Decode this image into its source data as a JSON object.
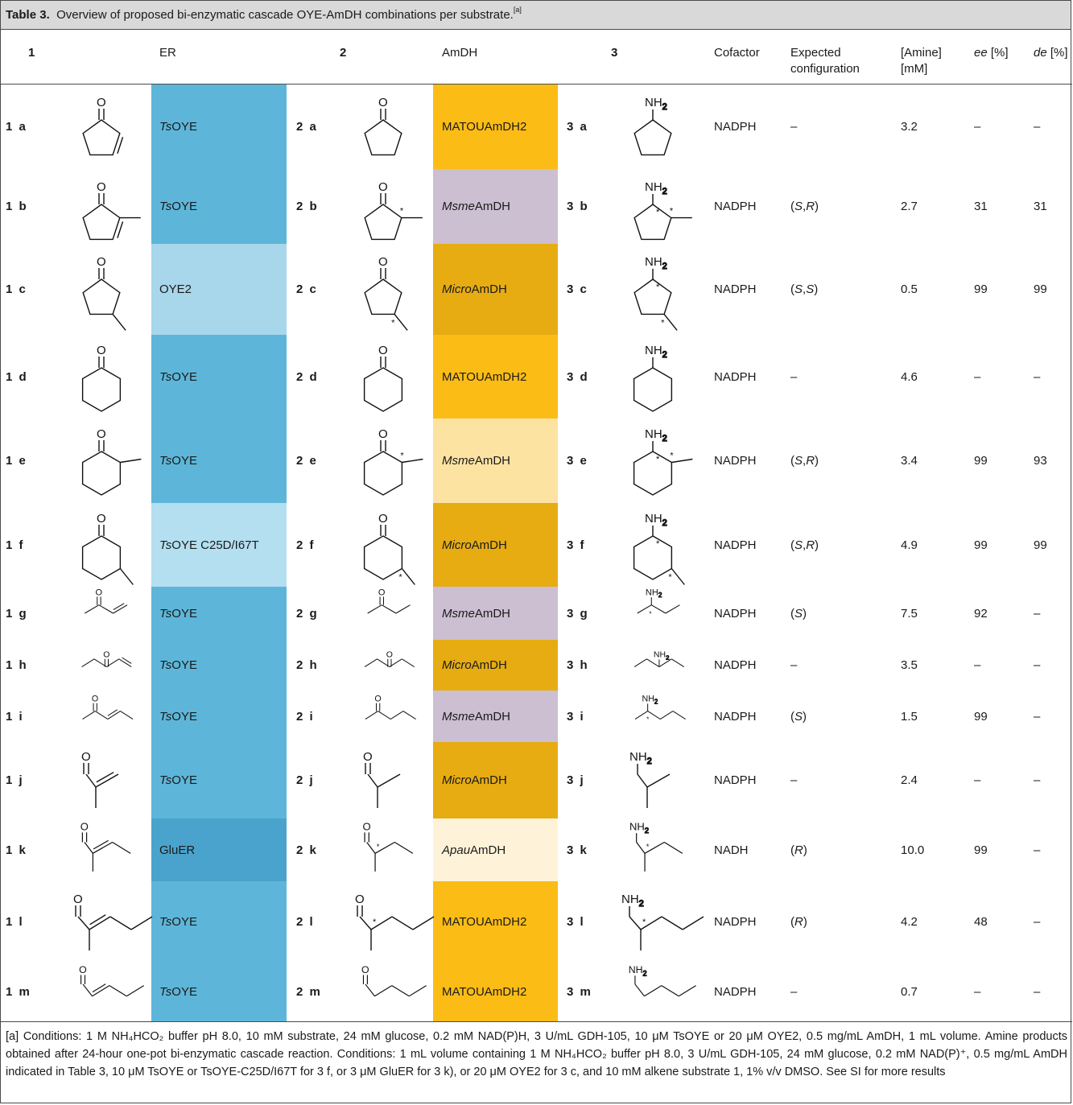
{
  "caption": {
    "label": "Table 3.",
    "text": "Overview of proposed bi-enzymatic cascade OYE-AmDH combinations per substrate.",
    "mark": "[a]"
  },
  "headers": {
    "c1": "1",
    "er": "ER",
    "c2": "2",
    "amdh": "AmDH",
    "c3": "3",
    "cofactor": "Cofactor",
    "config1": "Expected",
    "config2": "configuration",
    "amine1": "[Amine]",
    "amine2": "[mM]",
    "ee": "ee",
    "ee_unit": " [%]",
    "de": "de",
    "de_unit": " [%]"
  },
  "rows": [
    {
      "l1": "1 a",
      "er": "TsOYE",
      "l2": "2 a",
      "amdh": "MATOUAmDH2",
      "l3": "3 a",
      "cof": "NADPH",
      "cfg": "–",
      "amine": "3.2",
      "ee": "–",
      "de": "–"
    },
    {
      "l1": "1 b",
      "er": "TsOYE",
      "l2": "2 b",
      "amdh": "MsmeAmDH",
      "l3": "3 b",
      "cof": "NADPH",
      "cfg": "(S, R)",
      "amine": "2.7",
      "ee": "31",
      "de": "31"
    },
    {
      "l1": "1 c",
      "er": "OYE2",
      "l2": "2 c",
      "amdh": "MicroAmDH",
      "l3": "3 c",
      "cof": "NADPH",
      "cfg": "(S, S)",
      "amine": "0.5",
      "ee": "99",
      "de": "99"
    },
    {
      "l1": "1 d",
      "er": "TsOYE",
      "l2": "2 d",
      "amdh": "MATOUAmDH2",
      "l3": "3 d",
      "cof": "NADPH",
      "cfg": "–",
      "amine": "4.6",
      "ee": "–",
      "de": "–"
    },
    {
      "l1": "1 e",
      "er": "TsOYE",
      "l2": "2 e",
      "amdh": "MsmeAmDH",
      "l3": "3 e",
      "cof": "NADPH",
      "cfg": "(S,R)",
      "amine": "3.4",
      "ee": "99",
      "de": "93"
    },
    {
      "l1": "1 f",
      "er": "TsOYE C25D/I67T",
      "l2": "2 f",
      "amdh": "MicroAmDH",
      "l3": "3 f",
      "cof": "NADPH",
      "cfg": "(S,R)",
      "amine": "4.9",
      "ee": "99",
      "de": "99"
    },
    {
      "l1": "1 g",
      "er": "TsOYE",
      "l2": "2 g",
      "amdh": "MsmeAmDH",
      "l3": "3 g",
      "cof": "NADPH",
      "cfg": "(S)",
      "amine": "7.5",
      "ee": "92",
      "de": "–"
    },
    {
      "l1": "1 h",
      "er": "TsOYE",
      "l2": "2 h",
      "amdh": "MicroAmDH",
      "l3": "3 h",
      "cof": "NADPH",
      "cfg": "–",
      "amine": "3.5",
      "ee": "–",
      "de": "–"
    },
    {
      "l1": "1 i",
      "er": "TsOYE",
      "l2": "2 i",
      "amdh": "MsmeAmDH",
      "l3": "3 i",
      "cof": "NADPH",
      "cfg": "(S)",
      "amine": "1.5",
      "ee": "99",
      "de": "–"
    },
    {
      "l1": "1 j",
      "er": "TsOYE",
      "l2": "2 j",
      "amdh": "MicroAmDH",
      "l3": "3 j",
      "cof": "NADPH",
      "cfg": "–",
      "amine": "2.4",
      "ee": "–",
      "de": "–"
    },
    {
      "l1": "1 k",
      "er": "GluER",
      "l2": "2 k",
      "amdh": "ApauAmDH",
      "l3": "3 k",
      "cof": "NADH",
      "cfg": "(R)",
      "amine": "10.0",
      "ee": "99",
      "de": "–"
    },
    {
      "l1": "1 l",
      "er": "TsOYE",
      "l2": "2 l",
      "amdh": "MATOUAmDH2",
      "l3": "3 l",
      "cof": "NADPH",
      "cfg": "(R)",
      "amine": "4.2",
      "ee": "48",
      "de": "–"
    },
    {
      "l1": "1 m",
      "er": "TsOYE",
      "l2": "2 m",
      "amdh": "MATOUAmDH2",
      "l3": "3 m",
      "cof": "NADPH",
      "cfg": "–",
      "amine": "0.7",
      "ee": "–",
      "de": "–"
    }
  ],
  "colors": {
    "er_dark": "#5db6d9",
    "er_light": "#a8d6ea",
    "er_lighter": "#b3dff0",
    "er_gluer": "#4aa3cc",
    "am_yellow": "#fbbc15",
    "am_purple": "#cbbfd1",
    "am_gold": "#e6ac12",
    "am_pale": "#fde3a2",
    "am_cream": "#fef3d8"
  },
  "footnote": "[a] Conditions: 1 M NH₄HCO₂ buffer pH 8.0, 10 mM substrate, 24 mM glucose, 0.2 mM NAD(P)H, 3 U/mL GDH-105, 10 μM TsOYE or 20 μM OYE2, 0.5 mg/mL AmDH, 1 mL volume. Amine products obtained after 24-hour one-pot bi-enzymatic cascade reaction. Conditions: 1 mL volume containing 1 M NH₄HCO₂ buffer pH 8.0, 3 U/mL GDH-105, 24 mM glucose, 0.2 mM NAD(P)⁺, 0.5 mg/mL AmDH indicated in Table 3, 10 μM TsOYE or TsOYE-C25D/I67T for 3 f, or 3 μM GluER for 3 k), or 20 μM OYE2 for 3 c, and 10 mM alkene substrate 1, 1% v/v DMSO. See SI for more results"
}
